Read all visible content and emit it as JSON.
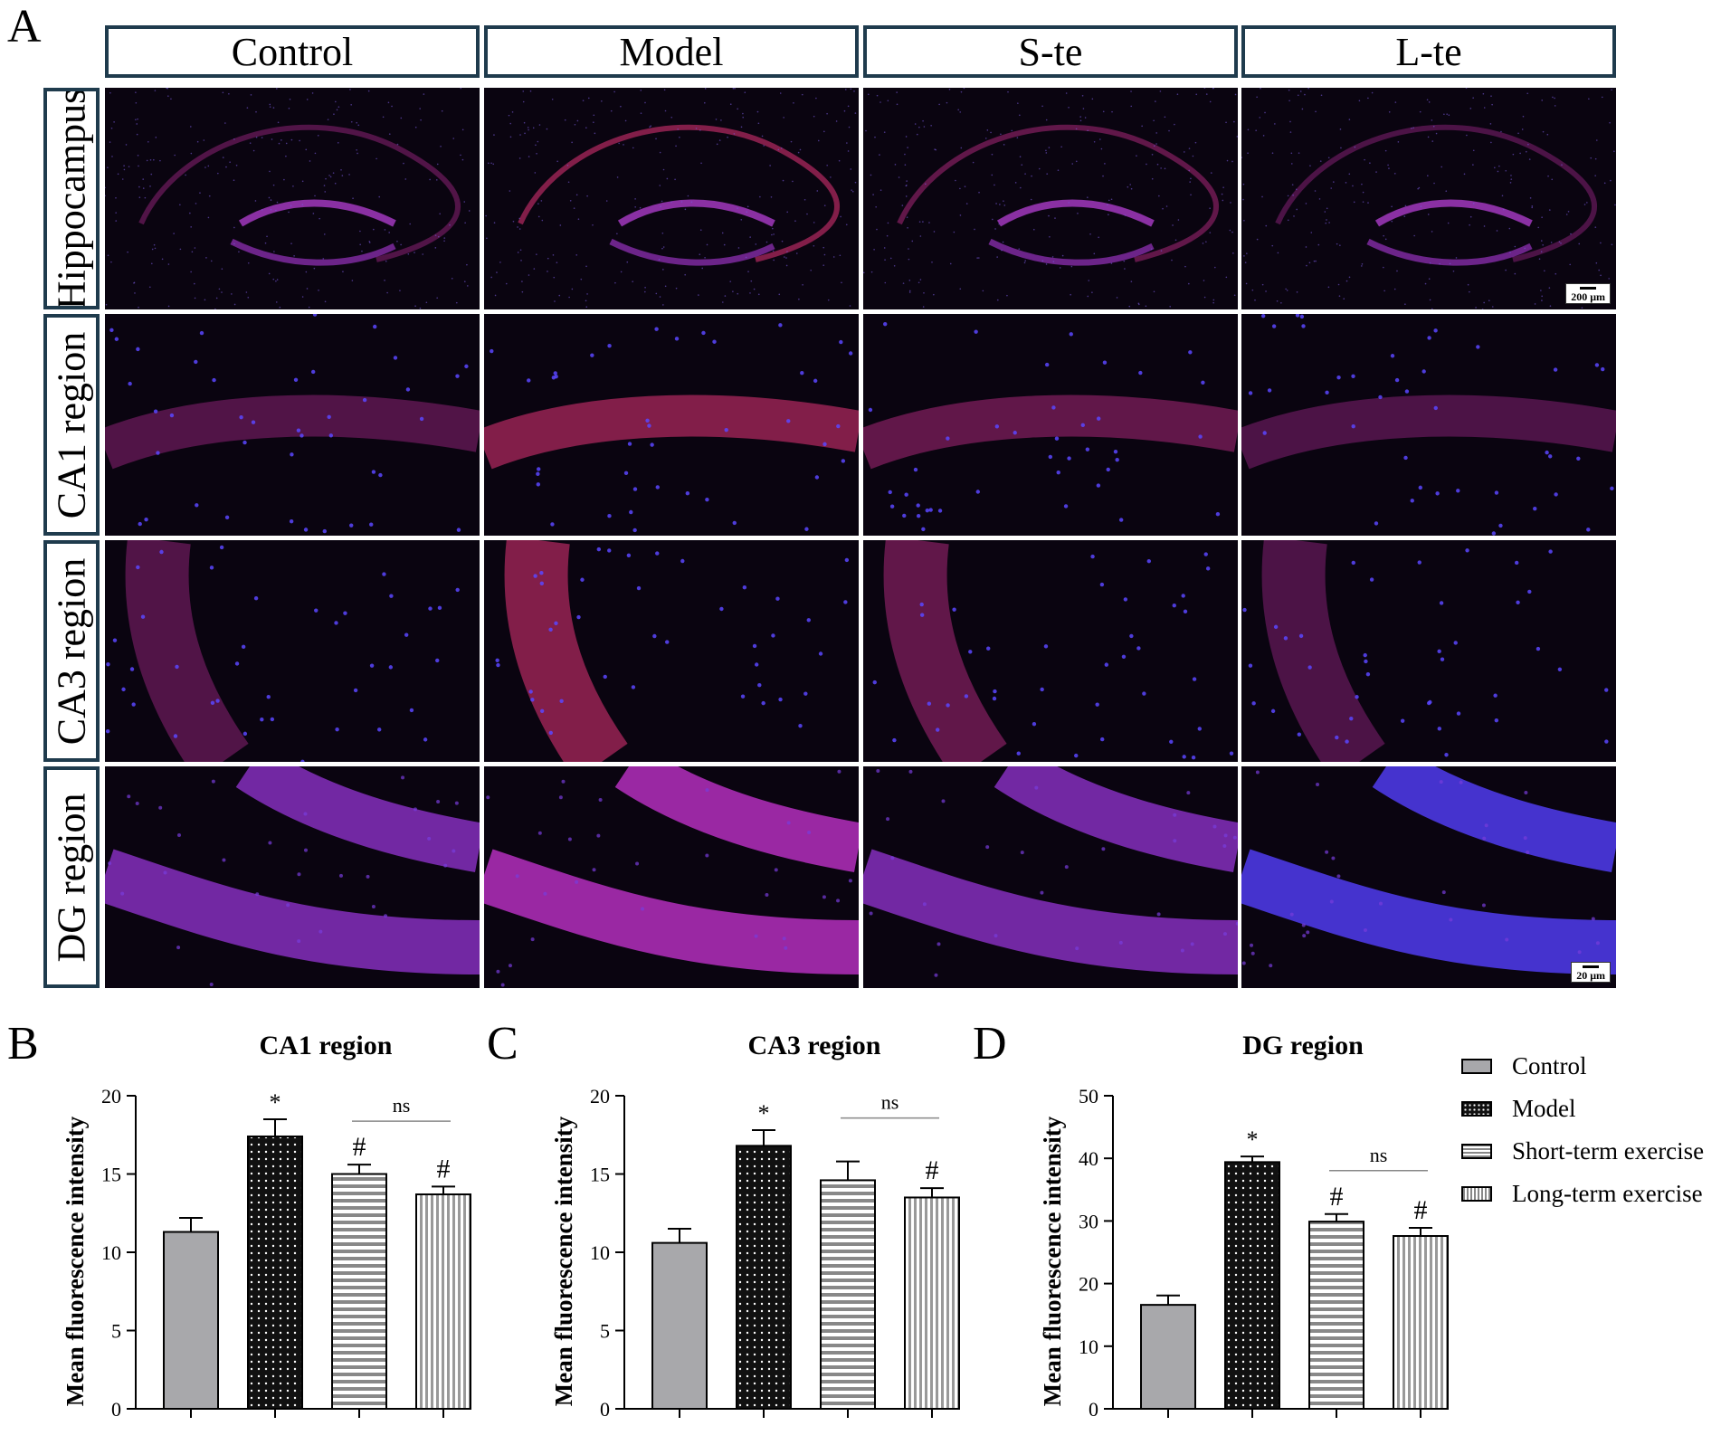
{
  "figure": {
    "panel_letters": [
      "A",
      "B",
      "C",
      "D"
    ],
    "column_headers": [
      "Control",
      "Model",
      "S-te",
      "L-te"
    ],
    "row_headers": [
      "Hippocampus",
      "CA1 region",
      "CA3 region",
      "DG region"
    ],
    "scalebars": {
      "hippocampus": "200 μm",
      "dg": "20 μm"
    },
    "colors": {
      "frame": "#1f3b4d",
      "bar_fill": "#a8a8ab",
      "stain_red": "#8a1f4a",
      "stain_blue": "#3b2fd0"
    }
  },
  "legend": {
    "items": [
      "Control",
      "Model",
      "Short-term exercise",
      "Long-term exercise"
    ]
  },
  "chart_data": [
    {
      "type": "bar",
      "title": "CA1 region",
      "ylabel": "Mean fluorescence intensity",
      "ylim": [
        0,
        20
      ],
      "yticks": [
        0,
        5,
        10,
        15,
        20
      ],
      "categories": [
        "Control",
        "Model",
        "Short-term exercise",
        "Long-term exercise"
      ],
      "values": [
        11.3,
        17.4,
        15.0,
        13.7
      ],
      "errors": [
        0.9,
        1.1,
        0.6,
        0.5
      ],
      "markers": [
        "",
        "*",
        "#",
        "#"
      ],
      "comparison": {
        "label": "ns",
        "between": [
          2,
          3
        ]
      }
    },
    {
      "type": "bar",
      "title": "CA3 region",
      "ylabel": "Mean fluorescence intensity",
      "ylim": [
        0,
        20
      ],
      "yticks": [
        0,
        5,
        10,
        15,
        20
      ],
      "categories": [
        "Control",
        "Model",
        "Short-term exercise",
        "Long-term exercise"
      ],
      "values": [
        10.6,
        16.8,
        14.6,
        13.5
      ],
      "errors": [
        0.9,
        1.0,
        1.2,
        0.6
      ],
      "markers": [
        "",
        "*",
        "",
        "#"
      ],
      "comparison": {
        "label": "ns",
        "between": [
          2,
          3
        ]
      }
    },
    {
      "type": "bar",
      "title": "DG region",
      "ylabel": "Mean fluorescence intensity",
      "ylim": [
        0,
        50
      ],
      "yticks": [
        0,
        10,
        20,
        30,
        40,
        50
      ],
      "categories": [
        "Control",
        "Model",
        "Short-term exercise",
        "Long-term exercise"
      ],
      "values": [
        16.6,
        39.4,
        29.9,
        27.6
      ],
      "errors": [
        1.5,
        0.9,
        1.2,
        1.3
      ],
      "markers": [
        "",
        "*",
        "#",
        "#"
      ],
      "comparison": {
        "label": "ns",
        "between": [
          2,
          3
        ]
      }
    }
  ]
}
